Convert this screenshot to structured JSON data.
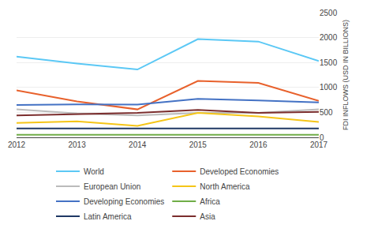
{
  "chart_data": {
    "type": "line",
    "ylabel": "FDI INFLOWS (USD IN BILLIONS)",
    "x": [
      2012,
      2013,
      2014,
      2015,
      2016,
      2017
    ],
    "xlim": [
      2012,
      2017
    ],
    "xticks": [
      2012,
      2013,
      2014,
      2015,
      2016,
      2017
    ],
    "ylim": [
      0,
      2500
    ],
    "yticks": [
      0,
      500,
      1000,
      1500,
      2000,
      2500
    ],
    "grid": true,
    "legend": "bottom",
    "series": [
      {
        "name": "World",
        "color": "#5BC8F5",
        "values": [
          1620,
          1480,
          1360,
          1970,
          1920,
          1530
        ]
      },
      {
        "name": "Developed Economies",
        "color": "#E8612C",
        "values": [
          940,
          720,
          560,
          1130,
          1090,
          730
        ]
      },
      {
        "name": "European Union",
        "color": "#BBBBBB",
        "values": [
          560,
          480,
          440,
          490,
          490,
          560
        ]
      },
      {
        "name": "North America",
        "color": "#F5C518",
        "values": [
          290,
          320,
          230,
          490,
          420,
          310
        ]
      },
      {
        "name": "Developing Economies",
        "color": "#4472C4",
        "values": [
          650,
          660,
          655,
          770,
          740,
          700
        ]
      },
      {
        "name": "Africa",
        "color": "#70AD47",
        "values": [
          52,
          52,
          52,
          54,
          52,
          52
        ]
      },
      {
        "name": "Latin America",
        "color": "#1F3864",
        "values": [
          178,
          178,
          172,
          172,
          178,
          178
        ]
      },
      {
        "name": "Asia",
        "color": "#7B2D2D",
        "values": [
          440,
          460,
          490,
          550,
          490,
          510
        ]
      }
    ]
  }
}
